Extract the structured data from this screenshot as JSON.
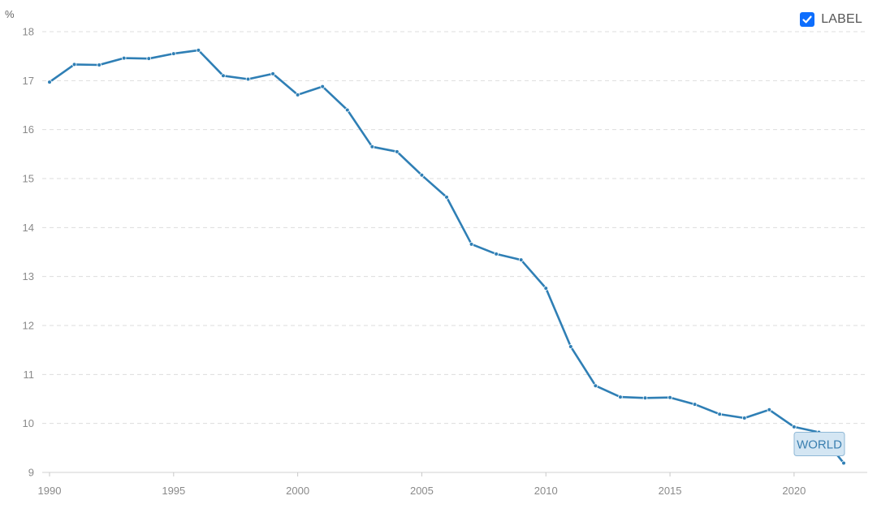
{
  "legend": {
    "label": "LABEL",
    "checked": true,
    "checkbox_color": "#0d6efd"
  },
  "chart_data": {
    "type": "line",
    "title": "",
    "xlabel": "",
    "ylabel": "%",
    "xlim": [
      1990,
      2022
    ],
    "ylim": [
      9,
      18
    ],
    "x_ticks": [
      1990,
      1995,
      2000,
      2005,
      2010,
      2015,
      2020
    ],
    "y_ticks": [
      9,
      10,
      11,
      12,
      13,
      14,
      15,
      16,
      17,
      18
    ],
    "grid": true,
    "series": [
      {
        "name": "WORLD",
        "color": "#2f7fb5",
        "x": [
          1990,
          1991,
          1992,
          1993,
          1994,
          1995,
          1996,
          1997,
          1998,
          1999,
          2000,
          2001,
          2002,
          2003,
          2004,
          2005,
          2006,
          2007,
          2008,
          2009,
          2010,
          2011,
          2012,
          2013,
          2014,
          2015,
          2016,
          2017,
          2018,
          2019,
          2020,
          2021,
          2022
        ],
        "y": [
          16.97,
          17.33,
          17.32,
          17.46,
          17.45,
          17.55,
          17.62,
          17.1,
          17.03,
          17.14,
          16.71,
          16.88,
          16.4,
          15.65,
          15.55,
          15.07,
          14.62,
          13.66,
          13.46,
          13.34,
          12.76,
          11.57,
          10.77,
          10.54,
          10.52,
          10.53,
          10.39,
          10.19,
          10.11,
          10.28,
          9.93,
          9.82,
          9.19
        ]
      }
    ]
  }
}
